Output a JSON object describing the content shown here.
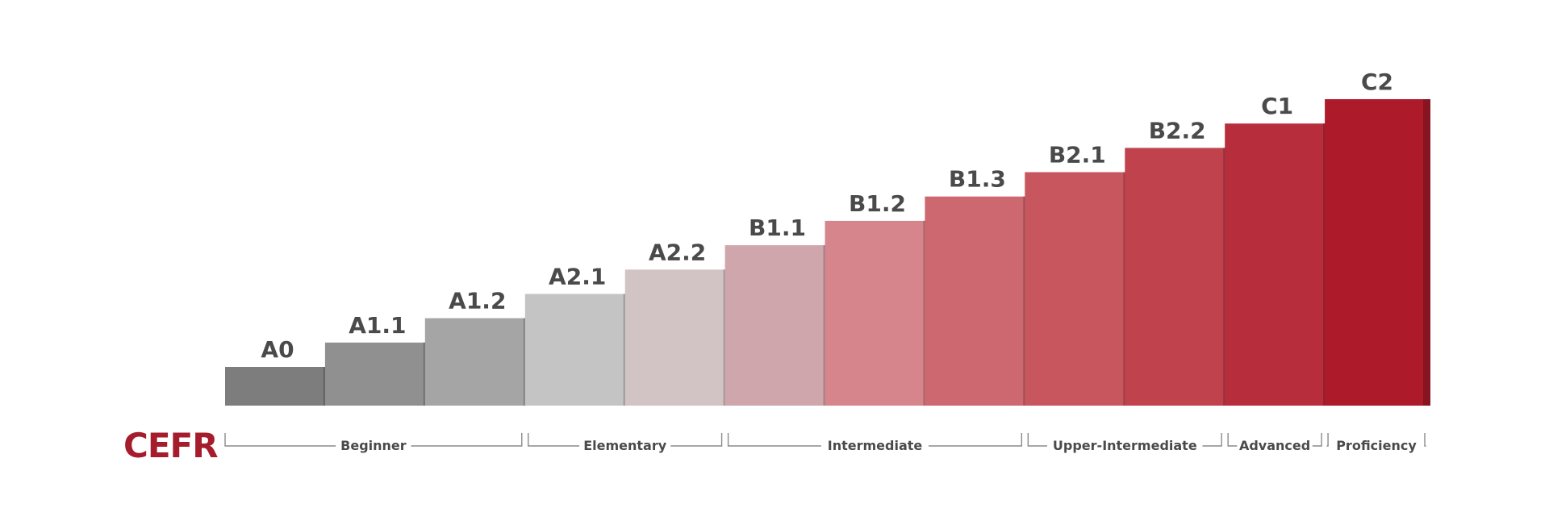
{
  "title": "CEFR",
  "chart_data": {
    "type": "bar",
    "categories": [
      "A0",
      "A1.1",
      "A1.2",
      "A2.1",
      "A2.2",
      "B1.1",
      "B1.2",
      "B1.3",
      "B2.1",
      "B2.2",
      "C1",
      "C2"
    ],
    "values": [
      1,
      2,
      3,
      4,
      5,
      6,
      7,
      8,
      9,
      10,
      11,
      12
    ],
    "colors": [
      "#7d7d7d",
      "#909090",
      "#a5a5a5",
      "#c4c4c4",
      "#d2c3c5",
      "#cfa6ab",
      "#d6858c",
      "#cd6870",
      "#c7565f",
      "#c0424d",
      "#b72d3b",
      "#ad1a2a"
    ],
    "groups": [
      {
        "label": "Beginner",
        "from": 0,
        "to": 2
      },
      {
        "label": "Elementary",
        "from": 3,
        "to": 4
      },
      {
        "label": "Intermediate",
        "from": 5,
        "to": 7
      },
      {
        "label": "Upper-Intermediate",
        "from": 8,
        "to": 9
      },
      {
        "label": "Advanced",
        "from": 10,
        "to": 10
      },
      {
        "label": "Proficiency",
        "from": 11,
        "to": 11
      }
    ]
  }
}
